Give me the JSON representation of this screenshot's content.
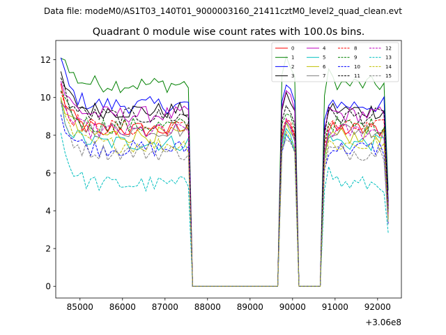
{
  "header": {
    "suptitle": "Data file: modeM0/AS1T03_140T01_9000003160_21411cztM0_level2_quad_clean.evt"
  },
  "chart_data": {
    "type": "line",
    "title": "Quadrant 0 module wise count rates with 100.0s bins.",
    "xlabel": "",
    "ylabel": "",
    "x_offset_label": "+3.06e8",
    "xlim": [
      84430,
      92560
    ],
    "ylim": [
      -0.62,
      13.02
    ],
    "xticks": [
      85000,
      86000,
      87000,
      88000,
      89000,
      90000,
      91000,
      92000
    ],
    "xtick_labels": [
      "85000",
      "86000",
      "87000",
      "88000",
      "89000",
      "90000",
      "91000",
      "92000"
    ],
    "yticks": [
      0,
      2,
      4,
      6,
      8,
      10,
      12
    ],
    "ytick_labels": [
      "0",
      "2",
      "4",
      "6",
      "8",
      "10",
      "12"
    ],
    "legend_position": "top-right",
    "x_start": 84550,
    "bin_width": 100,
    "n_bins": 78,
    "gaps": [
      [
        87650,
        89650
      ],
      [
        90150,
        90650
      ]
    ],
    "series": [
      {
        "name": "0",
        "color": "#ff0000",
        "dash": false,
        "level": 8.3,
        "start": 10.6,
        "seg2": 8.9,
        "seg3": 8.2
      },
      {
        "name": "1",
        "color": "#008000",
        "dash": false,
        "level": 10.7,
        "start": 12.45,
        "seg2": 12.0,
        "seg3": 11.3
      },
      {
        "name": "2",
        "color": "#0000ff",
        "dash": false,
        "level": 9.6,
        "start": 11.95,
        "seg2": 10.6,
        "seg3": 10.0
      },
      {
        "name": "3",
        "color": "#000000",
        "dash": false,
        "level": 9.3,
        "start": 11.2,
        "seg2": 10.1,
        "seg3": 9.5
      },
      {
        "name": "4",
        "color": "#bf00bf",
        "dash": false,
        "level": 9.1,
        "start": 10.9,
        "seg2": 10.3,
        "seg3": 9.3
      },
      {
        "name": "5",
        "color": "#00bfbf",
        "dash": false,
        "level": 7.6,
        "start": 9.6,
        "seg2": 8.3,
        "seg3": 7.9
      },
      {
        "name": "6",
        "color": "#bfbf00",
        "dash": false,
        "level": 8.0,
        "start": 10.2,
        "seg2": 8.6,
        "seg3": 8.1
      },
      {
        "name": "7",
        "color": "#808080",
        "dash": false,
        "level": 8.3,
        "start": 9.9,
        "seg2": 8.6,
        "seg3": 8.3
      },
      {
        "name": "8",
        "color": "#ff0000",
        "dash": true,
        "level": 8.4,
        "start": 10.4,
        "seg2": 9.0,
        "seg3": 8.6
      },
      {
        "name": "9",
        "color": "#008000",
        "dash": true,
        "level": 8.5,
        "start": 10.7,
        "seg2": 9.3,
        "seg3": 8.8
      },
      {
        "name": "10",
        "color": "#0000ff",
        "dash": true,
        "level": 7.3,
        "start": 9.2,
        "seg2": 8.0,
        "seg3": 7.4
      },
      {
        "name": "11",
        "color": "#000000",
        "dash": true,
        "level": 9.0,
        "start": 10.9,
        "seg2": 9.6,
        "seg3": 9.1
      },
      {
        "name": "12",
        "color": "#bf00bf",
        "dash": true,
        "level": 8.2,
        "start": 10.0,
        "seg2": 8.7,
        "seg3": 8.3
      },
      {
        "name": "13",
        "color": "#00bfbf",
        "dash": true,
        "level": 5.4,
        "start": 8.1,
        "seg2": 8.2,
        "seg3": 6.3
      },
      {
        "name": "14",
        "color": "#bfbf00",
        "dash": true,
        "level": 7.5,
        "start": 9.6,
        "seg2": 8.2,
        "seg3": 7.6
      },
      {
        "name": "15",
        "color": "#808080",
        "dash": true,
        "level": 7.1,
        "start": 9.4,
        "seg2": 7.9,
        "seg3": 7.3
      }
    ]
  }
}
